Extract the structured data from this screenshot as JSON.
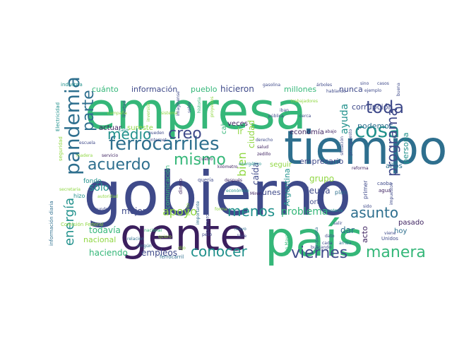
{
  "palette": {
    "dark_purple": "#3b1f5e",
    "indigo": "#3f4a8a",
    "steel_blue": "#2e6f8e",
    "teal": "#21918c",
    "green": "#35b779",
    "lime": "#90d743",
    "yellow": "#e5dc3a"
  },
  "words": [
    "gobierno",
    "empresa",
    "tiempo",
    "gente",
    "país",
    "pandemia",
    "ferrocarriles",
    "medio",
    "creo",
    "acuerdo",
    "parte",
    "mismo",
    "toda",
    "cosa",
    "menos",
    "conocer",
    "viernes",
    "manera",
    "asunto",
    "programa",
    "energía",
    "apoyo",
    "problema",
    "bien",
    "ayuda",
    "cuánto",
    "información",
    "pueblo",
    "hicieron",
    "millones",
    "nunca",
    "corrupción",
    "podemos",
    "economía",
    "persona",
    "empresario",
    "caída",
    "ciudad",
    "seguir",
    "sólo",
    "mejor",
    "todavía",
    "nacional",
    "haciendo",
    "empleos",
    "comunicación",
    "Argentina",
    "deuda",
    "norte",
    "lunes",
    "grupo",
    "pasado",
    "hoy",
    "dar",
    "acto",
    "años",
    "fondo",
    "hizo",
    "actuar",
    "sureste",
    "veces",
    "cabo",
    "ir",
    "industria",
    "Electricidad",
    "seguridad",
    "información diaria",
    "Comisión Federal",
    "ferrocarril",
    "kilómetro",
    "quería",
    "después",
    "dinero",
    "primero",
    "punto",
    "plan",
    "primer",
    "caoba",
    "agua",
    "impuestos",
    "sido",
    "reforma",
    "gasolina",
    "árboles",
    "hablando",
    "ejemplo",
    "buena",
    "casos",
    "trabajadores",
    "proyectos",
    "sistema",
    "libertad",
    "inversión",
    "campaña",
    "caso",
    "escuela",
    "historia",
    "imaginense",
    "selva",
    "pueden",
    "internet",
    "servicio",
    "madera",
    "secretaria",
    "mundo",
    "autoridad",
    "relación",
    "ningún",
    "quiero",
    "dijo",
    "mayo",
    "forma",
    "peso",
    "Tren Maya",
    "propuesta",
    "montería",
    "Miren",
    "libre",
    "dato",
    "salir",
    "arriba",
    "cada",
    "viene",
    "cerca",
    "derecho",
    "salud",
    "zedillo",
    "situación",
    "presupuesto",
    "abajo",
    "buscando",
    "sino",
    "iban",
    "pública",
    "cuatro",
    "Unidos",
    "nacional",
    "importante",
    "energético",
    "económico"
  ]
}
